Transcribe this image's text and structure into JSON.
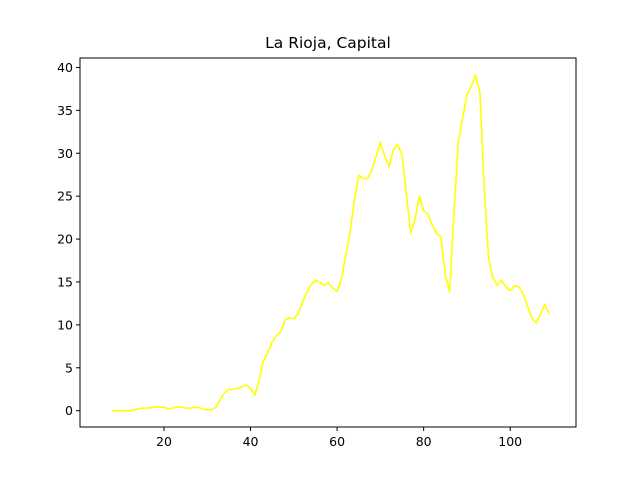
{
  "chart_data": {
    "type": "line",
    "title": "La Rioja, Capital",
    "xlabel": "",
    "ylabel": "",
    "xlim": [
      0.6,
      115.2
    ],
    "ylim": [
      -1.9,
      41.1
    ],
    "x_ticks": [
      20,
      40,
      60,
      80,
      100
    ],
    "y_ticks": [
      0,
      5,
      10,
      15,
      20,
      25,
      30,
      35,
      40
    ],
    "grid": false,
    "legend": "none",
    "series": [
      {
        "color": "#ffff00",
        "x": [
          8,
          9,
          10,
          11,
          12,
          13,
          14,
          15,
          16,
          17,
          18,
          19,
          20,
          21,
          22,
          23,
          24,
          25,
          26,
          27,
          28,
          29,
          30,
          31,
          32,
          33,
          34,
          35,
          36,
          37,
          38,
          39,
          40,
          41,
          42,
          43,
          44,
          45,
          46,
          47,
          48,
          49,
          50,
          51,
          52,
          53,
          54,
          55,
          56,
          57,
          58,
          59,
          60,
          61,
          62,
          63,
          64,
          65,
          66,
          67,
          68,
          69,
          70,
          71,
          72,
          73,
          74,
          75,
          76,
          77,
          78,
          79,
          80,
          81,
          82,
          83,
          84,
          85,
          86,
          87,
          88,
          89,
          90,
          91,
          92,
          93,
          94,
          95,
          96,
          97,
          98,
          99,
          100,
          101,
          102,
          103,
          104,
          105,
          106,
          107,
          108,
          109
        ],
        "y": [
          0.0,
          0.0,
          0.0,
          0.0,
          0.0,
          0.1,
          0.2,
          0.3,
          0.3,
          0.35,
          0.4,
          0.45,
          0.4,
          0.2,
          0.3,
          0.4,
          0.4,
          0.3,
          0.3,
          0.35,
          0.4,
          0.2,
          0.1,
          0.1,
          0.4,
          1.3,
          2.1,
          2.5,
          2.5,
          2.6,
          2.8,
          3.0,
          2.6,
          1.8,
          3.6,
          5.8,
          6.8,
          8.0,
          8.8,
          9.2,
          10.6,
          10.8,
          10.7,
          11.3,
          12.6,
          13.8,
          14.7,
          15.2,
          15.0,
          14.6,
          14.9,
          14.3,
          13.9,
          15.3,
          18.1,
          20.8,
          24.6,
          27.4,
          27.1,
          27.0,
          28.0,
          29.6,
          31.3,
          29.7,
          28.4,
          30.4,
          31.0,
          29.8,
          25.3,
          20.7,
          22.3,
          25.0,
          23.3,
          22.9,
          21.6,
          20.6,
          20.3,
          15.8,
          13.9,
          23.0,
          31.3,
          34.0,
          36.8,
          37.8,
          39.1,
          37.0,
          26.0,
          17.7,
          15.5,
          14.6,
          15.2,
          14.4,
          14.0,
          14.6,
          14.4,
          13.6,
          12.2,
          10.8,
          10.2,
          11.3,
          12.4,
          11.3
        ]
      }
    ]
  }
}
